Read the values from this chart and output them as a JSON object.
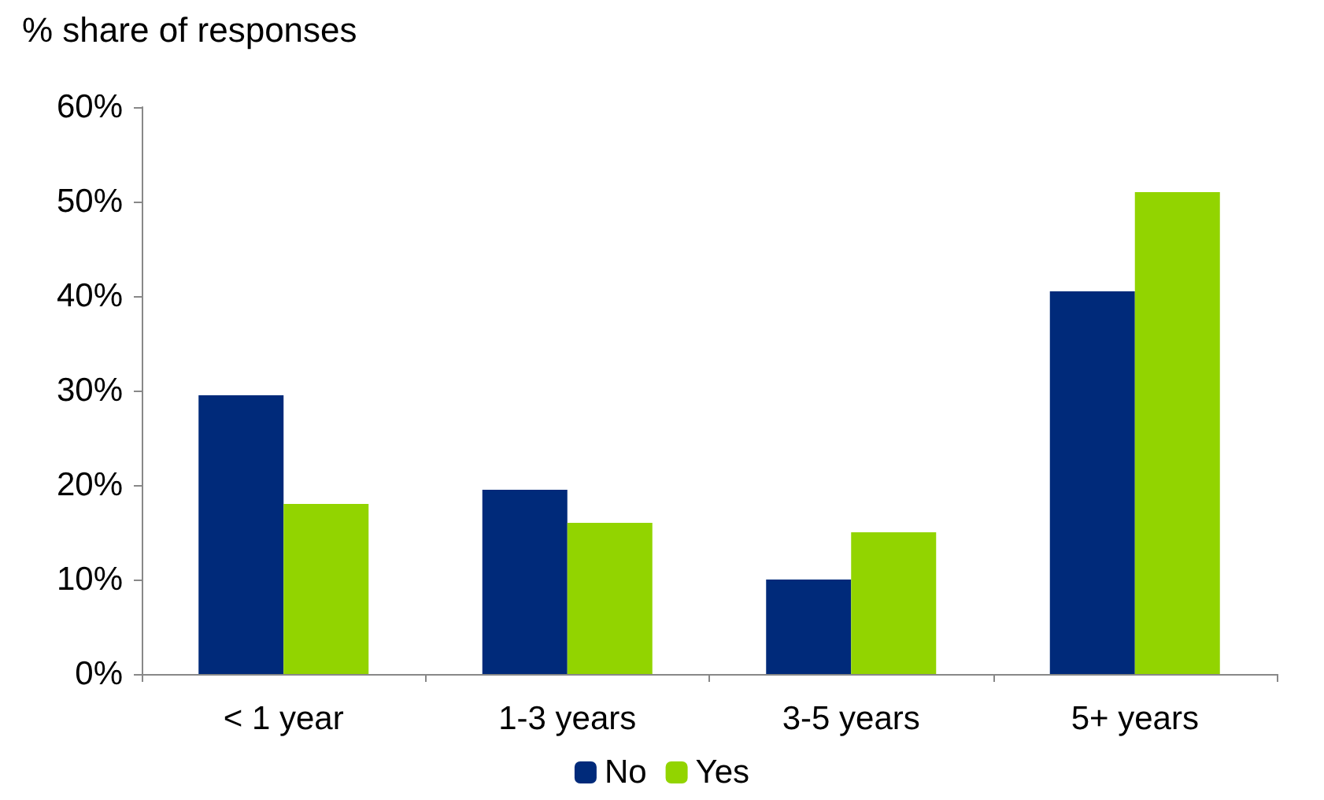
{
  "chart_data": {
    "type": "bar",
    "ylabel": "% share of responses",
    "categories": [
      "< 1 year",
      "1-3 years",
      "3-5 years",
      "5+ years"
    ],
    "series": [
      {
        "name": "No",
        "color": "#002a7a",
        "values": [
          29.5,
          19.5,
          10,
          40.5
        ]
      },
      {
        "name": "Yes",
        "color": "#92d400",
        "values": [
          18,
          16,
          15,
          51
        ]
      }
    ],
    "ylim": [
      0,
      60
    ],
    "yticks": [
      {
        "value": 0,
        "label": "0%"
      },
      {
        "value": 10,
        "label": "10%"
      },
      {
        "value": 20,
        "label": "20%"
      },
      {
        "value": 30,
        "label": "30%"
      },
      {
        "value": 40,
        "label": "40%"
      },
      {
        "value": 50,
        "label": "50%"
      },
      {
        "value": 60,
        "label": "60%"
      }
    ],
    "grid": false,
    "legend": "bottom"
  }
}
